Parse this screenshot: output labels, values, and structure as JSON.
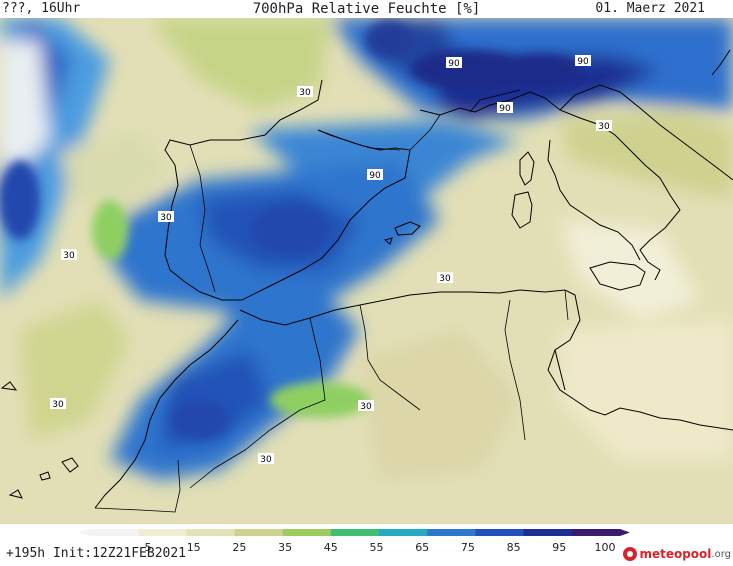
{
  "header": {
    "left": "???, 16Uhr",
    "title": "700hPa Relative Feuchte [%]",
    "date": "01. Maerz 2021"
  },
  "footer": {
    "run_info": "+195h  Init:12Z21FEB2021",
    "logo_name": "meteopool",
    "logo_tld": ".org",
    "logo_icon": "meteopool-logo-icon"
  },
  "map": {
    "variable": "700hPa Relative Feuchte",
    "region": "Western Mediterranean / Iberia / North Africa",
    "contour_labels": [
      {
        "text": "90"
      },
      {
        "text": "90"
      },
      {
        "text": "90"
      },
      {
        "text": "90"
      },
      {
        "text": "30"
      },
      {
        "text": "30"
      },
      {
        "text": "30"
      },
      {
        "text": "30"
      },
      {
        "text": "30"
      },
      {
        "text": "30"
      },
      {
        "text": "30"
      },
      {
        "text": "30"
      }
    ]
  },
  "legend": {
    "ticks": [
      "5",
      "15",
      "25",
      "35",
      "45",
      "55",
      "65",
      "75",
      "85",
      "95",
      "100"
    ],
    "colors": [
      "#f4f4f4",
      "#f3ecd5",
      "#e6e2b8",
      "#cfd28f",
      "#9ccb5e",
      "#3fbf74",
      "#25a9c4",
      "#2b79cf",
      "#2350bf",
      "#1f2e92",
      "#3a1a6e"
    ]
  },
  "colors": {
    "land_dry": "#e2dfb6",
    "moist": "#2b79cf",
    "very_moist": "#1f2e92",
    "coast": "#000000"
  }
}
